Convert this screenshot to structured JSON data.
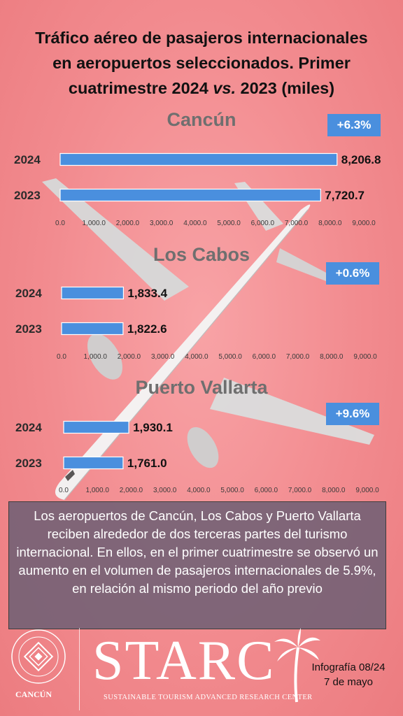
{
  "title_line1": "Tráfico aéreo de pasajeros internacionales",
  "title_line2": "en aeropuertos seleccionados. Primer",
  "title_line3_a": "cuatrimestre 2024 ",
  "title_line3_vs": "vs.",
  "title_line3_b": " 2023 (miles)",
  "chart_data": [
    {
      "type": "bar",
      "orientation": "horizontal",
      "title": "Cancún",
      "badge": "+6.3%",
      "categories": [
        "2024",
        "2023"
      ],
      "values": [
        8206.8,
        7720.7
      ],
      "value_labels": [
        "8,206.8",
        "7,720.7"
      ],
      "xlim": [
        0,
        9000
      ],
      "tick_labels": [
        "0.0",
        "1,000.0",
        "2,000.0",
        "3,000.0",
        "4,000.0",
        "5,000.0",
        "6,000.0",
        "7,000.0",
        "8,000.0",
        "9,000.0"
      ],
      "color": "#4a8fde",
      "grid": false
    },
    {
      "type": "bar",
      "orientation": "horizontal",
      "title": "Los Cabos",
      "badge": "+0.6%",
      "categories": [
        "2024",
        "2023"
      ],
      "values": [
        1833.4,
        1822.6
      ],
      "value_labels": [
        "1,833.4",
        "1,822.6"
      ],
      "xlim": [
        0,
        9000
      ],
      "tick_labels": [
        "0.0",
        "1,000.0",
        "2,000.0",
        "3,000.0",
        "4,000.0",
        "5,000.0",
        "6,000.0",
        "7,000.0",
        "8,000.0",
        "9,000.0"
      ],
      "color": "#4a8fde",
      "grid": false
    },
    {
      "type": "bar",
      "orientation": "horizontal",
      "title": "Puerto Vallarta",
      "badge": "+9.6%",
      "categories": [
        "2024",
        "2023"
      ],
      "values": [
        1930.1,
        1761.0
      ],
      "value_labels": [
        "1,930.1",
        "1,761.0"
      ],
      "xlim": [
        0,
        9000
      ],
      "tick_labels": [
        "0.0",
        "1,000.0",
        "2,000.0",
        "3,000.0",
        "4,000.0",
        "5,000.0",
        "6,000.0",
        "7,000.0",
        "8,000.0",
        "9,000.0"
      ],
      "color": "#4a8fde",
      "grid": false
    }
  ],
  "summary": "Los aeropuertos de Cancún, Los Cabos y Puerto Vallarta reciben alrededor de dos terceras partes del turismo internacional. En ellos, en el primer cuatrimestre se observó un aumento en el volumen de pasajeros internacionales de 5.9%, en relación al mismo periodo del año previo",
  "footer": {
    "university_name": "CANCÚN",
    "logo_text": "STARC",
    "logo_subtitle": "SUSTAINABLE TOURISM ADVANCED RESEARCH CENTER",
    "infographic_label": "Infografía 08/24",
    "date": "7 de mayo"
  }
}
